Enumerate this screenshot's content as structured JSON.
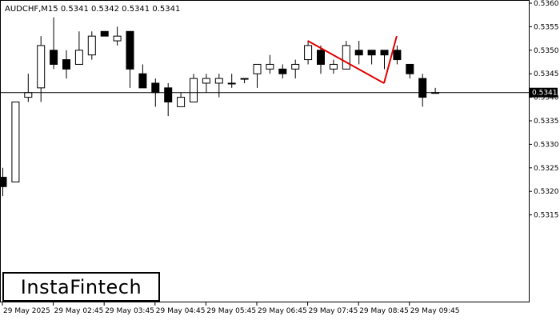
{
  "chart_data": {
    "type": "candlestick",
    "title": "AUDCHF,M15  0.5341 0.5342 0.5341 0.5341",
    "symbol": "AUDCHF",
    "timeframe": "M15",
    "ohlc_header": "0.5341 0.5342 0.5341 0.5341",
    "current_price": 0.5341,
    "current_price_label": "0.5341",
    "ylim": [
      0.5311,
      0.536
    ],
    "y_ticks": [
      "0.5360",
      "0.5355",
      "0.5350",
      "0.5345",
      "0.5340",
      "0.5335",
      "0.5330",
      "0.5325",
      "0.5320",
      "0.5315"
    ],
    "x_tick_labels": [
      "29 May 2025",
      "29 May 02:45",
      "29 May 03:45",
      "29 May 04:45",
      "29 May 05:45",
      "29 May 06:45",
      "29 May 07:45",
      "29 May 08:45",
      "29 May 09:45"
    ],
    "candles": [
      {
        "o": 0.5323,
        "h": 0.5325,
        "l": 0.5319,
        "c": 0.5321
      },
      {
        "o": 0.5322,
        "h": 0.5339,
        "l": 0.5322,
        "c": 0.5339
      },
      {
        "o": 0.534,
        "h": 0.5345,
        "l": 0.5339,
        "c": 0.5341
      },
      {
        "o": 0.5342,
        "h": 0.5353,
        "l": 0.5339,
        "c": 0.5351
      },
      {
        "o": 0.535,
        "h": 0.5357,
        "l": 0.5346,
        "c": 0.5347
      },
      {
        "o": 0.5348,
        "h": 0.535,
        "l": 0.5344,
        "c": 0.5346
      },
      {
        "o": 0.5347,
        "h": 0.5354,
        "l": 0.5347,
        "c": 0.535
      },
      {
        "o": 0.5349,
        "h": 0.5354,
        "l": 0.5348,
        "c": 0.5353
      },
      {
        "o": 0.5354,
        "h": 0.5354,
        "l": 0.5353,
        "c": 0.5353
      },
      {
        "o": 0.5352,
        "h": 0.5355,
        "l": 0.5351,
        "c": 0.5353
      },
      {
        "o": 0.5354,
        "h": 0.5354,
        "l": 0.5342,
        "c": 0.5346
      },
      {
        "o": 0.5345,
        "h": 0.5347,
        "l": 0.5342,
        "c": 0.5342
      },
      {
        "o": 0.5343,
        "h": 0.5344,
        "l": 0.5338,
        "c": 0.5341
      },
      {
        "o": 0.5342,
        "h": 0.5343,
        "l": 0.5336,
        "c": 0.5339
      },
      {
        "o": 0.5338,
        "h": 0.5341,
        "l": 0.5338,
        "c": 0.534
      },
      {
        "o": 0.5339,
        "h": 0.5345,
        "l": 0.5339,
        "c": 0.5344
      },
      {
        "o": 0.5343,
        "h": 0.5345,
        "l": 0.5341,
        "c": 0.5344
      },
      {
        "o": 0.5343,
        "h": 0.5345,
        "l": 0.534,
        "c": 0.5344
      },
      {
        "o": 0.5343,
        "h": 0.5345,
        "l": 0.5342,
        "c": 0.5343
      },
      {
        "o": 0.5344,
        "h": 0.5344,
        "l": 0.5343,
        "c": 0.5344
      },
      {
        "o": 0.5345,
        "h": 0.5347,
        "l": 0.5342,
        "c": 0.5347
      },
      {
        "o": 0.5346,
        "h": 0.5349,
        "l": 0.5345,
        "c": 0.5347
      },
      {
        "o": 0.5346,
        "h": 0.5347,
        "l": 0.5344,
        "c": 0.5345
      },
      {
        "o": 0.5346,
        "h": 0.5348,
        "l": 0.5344,
        "c": 0.5347
      },
      {
        "o": 0.5348,
        "h": 0.5352,
        "l": 0.5347,
        "c": 0.5351
      },
      {
        "o": 0.535,
        "h": 0.5351,
        "l": 0.5345,
        "c": 0.5347
      },
      {
        "o": 0.5346,
        "h": 0.5348,
        "l": 0.5345,
        "c": 0.5347
      },
      {
        "o": 0.5346,
        "h": 0.5352,
        "l": 0.5346,
        "c": 0.5351
      },
      {
        "o": 0.535,
        "h": 0.5352,
        "l": 0.5347,
        "c": 0.5349
      },
      {
        "o": 0.535,
        "h": 0.535,
        "l": 0.5347,
        "c": 0.5349
      },
      {
        "o": 0.535,
        "h": 0.535,
        "l": 0.5346,
        "c": 0.5349
      },
      {
        "o": 0.535,
        "h": 0.5351,
        "l": 0.5347,
        "c": 0.5348
      },
      {
        "o": 0.5347,
        "h": 0.5347,
        "l": 0.5344,
        "c": 0.5345
      },
      {
        "o": 0.5344,
        "h": 0.5345,
        "l": 0.5338,
        "c": 0.534
      },
      {
        "o": 0.5341,
        "h": 0.5342,
        "l": 0.5341,
        "c": 0.5341
      }
    ],
    "pattern_lines": {
      "color": "#e00000",
      "points": [
        {
          "candle": 24,
          "price": 0.5352
        },
        {
          "candle": 30,
          "price": 0.5343
        },
        {
          "candle": 31,
          "price": 0.5353
        }
      ]
    }
  },
  "logo": {
    "text": "InstaFintech"
  }
}
